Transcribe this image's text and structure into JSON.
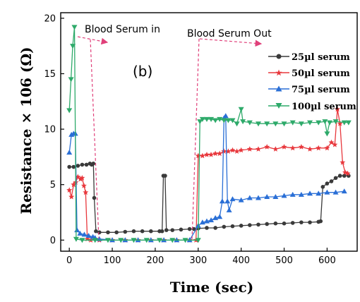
{
  "chart_data": {
    "type": "line",
    "panel_label": "(b)",
    "xlabel": "Time (sec)",
    "ylabel": "Resistance × 106 (Ω)",
    "xlim": [
      -20,
      670
    ],
    "ylim": [
      -1,
      20.5
    ],
    "xticks": [
      "0",
      "100",
      "200",
      "300",
      "400",
      "500",
      "600"
    ],
    "yticks": [
      "0",
      "5",
      "10",
      "15",
      "20"
    ],
    "annotations": [
      "Blood Serum in",
      "Blood Serum Out"
    ],
    "legend_position": "top-right",
    "series": [
      {
        "name": "25µl serum",
        "color": "#3a3a3a",
        "marker": "circle",
        "points": [
          [
            0,
            6.6
          ],
          [
            10,
            6.6
          ],
          [
            20,
            6.7
          ],
          [
            30,
            6.8
          ],
          [
            40,
            6.8
          ],
          [
            48,
            6.9
          ],
          [
            52,
            6.8
          ],
          [
            56,
            6.9
          ],
          [
            58,
            3.8
          ],
          [
            62,
            0.8
          ],
          [
            70,
            0.7
          ],
          [
            90,
            0.7
          ],
          [
            110,
            0.7
          ],
          [
            130,
            0.75
          ],
          [
            150,
            0.8
          ],
          [
            170,
            0.8
          ],
          [
            190,
            0.8
          ],
          [
            210,
            0.8
          ],
          [
            216,
            0.8
          ],
          [
            219,
            5.8
          ],
          [
            223,
            5.8
          ],
          [
            226,
            0.9
          ],
          [
            240,
            0.9
          ],
          [
            260,
            0.95
          ],
          [
            280,
            1.0
          ],
          [
            290,
            1.0
          ],
          [
            300,
            1.05
          ],
          [
            320,
            1.1
          ],
          [
            340,
            1.1
          ],
          [
            360,
            1.2
          ],
          [
            380,
            1.25
          ],
          [
            400,
            1.3
          ],
          [
            420,
            1.35
          ],
          [
            440,
            1.4
          ],
          [
            460,
            1.45
          ],
          [
            480,
            1.5
          ],
          [
            500,
            1.5
          ],
          [
            520,
            1.55
          ],
          [
            540,
            1.6
          ],
          [
            560,
            1.6
          ],
          [
            580,
            1.65
          ],
          [
            585,
            1.7
          ],
          [
            590,
            4.8
          ],
          [
            600,
            5.1
          ],
          [
            610,
            5.3
          ],
          [
            620,
            5.6
          ],
          [
            630,
            5.8
          ],
          [
            640,
            5.8
          ],
          [
            650,
            5.8
          ]
        ]
      },
      {
        "name": "50µl serum",
        "color": "#e8383d",
        "marker": "star",
        "points": [
          [
            0,
            4.5
          ],
          [
            5,
            3.9
          ],
          [
            10,
            5.0
          ],
          [
            15,
            5.2
          ],
          [
            20,
            5.7
          ],
          [
            26,
            5.5
          ],
          [
            30,
            5.6
          ],
          [
            34,
            4.9
          ],
          [
            38,
            4.3
          ],
          [
            42,
            0.1
          ],
          [
            50,
            0.0
          ],
          [
            70,
            0.0
          ],
          [
            100,
            0.0
          ],
          [
            130,
            0.0
          ],
          [
            160,
            0.0
          ],
          [
            190,
            0.0
          ],
          [
            220,
            0.0
          ],
          [
            250,
            0.0
          ],
          [
            280,
            0.0
          ],
          [
            295,
            0.0
          ],
          [
            300,
            7.6
          ],
          [
            310,
            7.6
          ],
          [
            320,
            7.7
          ],
          [
            330,
            7.7
          ],
          [
            340,
            7.8
          ],
          [
            350,
            7.8
          ],
          [
            360,
            8.0
          ],
          [
            370,
            8.0
          ],
          [
            380,
            8.1
          ],
          [
            390,
            8.0
          ],
          [
            400,
            8.1
          ],
          [
            420,
            8.2
          ],
          [
            440,
            8.2
          ],
          [
            460,
            8.4
          ],
          [
            480,
            8.2
          ],
          [
            500,
            8.4
          ],
          [
            520,
            8.3
          ],
          [
            540,
            8.4
          ],
          [
            560,
            8.2
          ],
          [
            580,
            8.3
          ],
          [
            600,
            8.3
          ],
          [
            610,
            8.8
          ],
          [
            618,
            8.6
          ],
          [
            624,
            11.8
          ],
          [
            630,
            10.5
          ],
          [
            636,
            7.0
          ],
          [
            642,
            6.1
          ],
          [
            648,
            6.0
          ]
        ]
      },
      {
        "name": "75µl serum",
        "color": "#2a6fd6",
        "marker": "triangle",
        "points": [
          [
            0,
            7.9
          ],
          [
            5,
            9.5
          ],
          [
            10,
            9.6
          ],
          [
            14,
            9.6
          ],
          [
            18,
            0.9
          ],
          [
            25,
            0.6
          ],
          [
            35,
            0.5
          ],
          [
            45,
            0.4
          ],
          [
            55,
            0.3
          ],
          [
            60,
            0.2
          ],
          [
            70,
            0.1
          ],
          [
            100,
            0.0
          ],
          [
            130,
            0.0
          ],
          [
            160,
            0.0
          ],
          [
            190,
            0.0
          ],
          [
            220,
            0.0
          ],
          [
            250,
            0.0
          ],
          [
            280,
            0.0
          ],
          [
            300,
            1.3
          ],
          [
            310,
            1.6
          ],
          [
            320,
            1.7
          ],
          [
            330,
            1.8
          ],
          [
            340,
            2.0
          ],
          [
            350,
            2.1
          ],
          [
            356,
            3.5
          ],
          [
            360,
            11.0
          ],
          [
            364,
            11.2
          ],
          [
            368,
            3.5
          ],
          [
            372,
            2.7
          ],
          [
            380,
            3.7
          ],
          [
            400,
            3.6
          ],
          [
            420,
            3.8
          ],
          [
            440,
            3.8
          ],
          [
            460,
            3.9
          ],
          [
            480,
            3.9
          ],
          [
            500,
            4.0
          ],
          [
            520,
            4.1
          ],
          [
            540,
            4.1
          ],
          [
            560,
            4.2
          ],
          [
            580,
            4.2
          ],
          [
            600,
            4.3
          ],
          [
            620,
            4.3
          ],
          [
            640,
            4.4
          ]
        ]
      },
      {
        "name": "100µl serum",
        "color": "#2eaa6a",
        "marker": "triangle-down",
        "points": [
          [
            0,
            11.7
          ],
          [
            4,
            14.5
          ],
          [
            8,
            17.5
          ],
          [
            12,
            19.2
          ],
          [
            16,
            0.1
          ],
          [
            30,
            0.0
          ],
          [
            60,
            0.0
          ],
          [
            90,
            0.0
          ],
          [
            120,
            0.0
          ],
          [
            150,
            0.0
          ],
          [
            180,
            0.0
          ],
          [
            210,
            0.0
          ],
          [
            240,
            0.0
          ],
          [
            270,
            0.0
          ],
          [
            300,
            0.0
          ],
          [
            304,
            10.7
          ],
          [
            310,
            10.9
          ],
          [
            320,
            10.9
          ],
          [
            330,
            10.9
          ],
          [
            340,
            10.8
          ],
          [
            350,
            10.9
          ],
          [
            360,
            10.8
          ],
          [
            370,
            10.8
          ],
          [
            380,
            10.8
          ],
          [
            390,
            10.5
          ],
          [
            400,
            11.8
          ],
          [
            404,
            10.7
          ],
          [
            420,
            10.6
          ],
          [
            440,
            10.5
          ],
          [
            460,
            10.5
          ],
          [
            480,
            10.5
          ],
          [
            500,
            10.5
          ],
          [
            520,
            10.6
          ],
          [
            540,
            10.5
          ],
          [
            560,
            10.6
          ],
          [
            580,
            10.6
          ],
          [
            595,
            10.7
          ],
          [
            600,
            9.6
          ],
          [
            606,
            10.6
          ],
          [
            620,
            10.7
          ],
          [
            640,
            10.6
          ],
          [
            650,
            10.6
          ]
        ]
      }
    ]
  }
}
